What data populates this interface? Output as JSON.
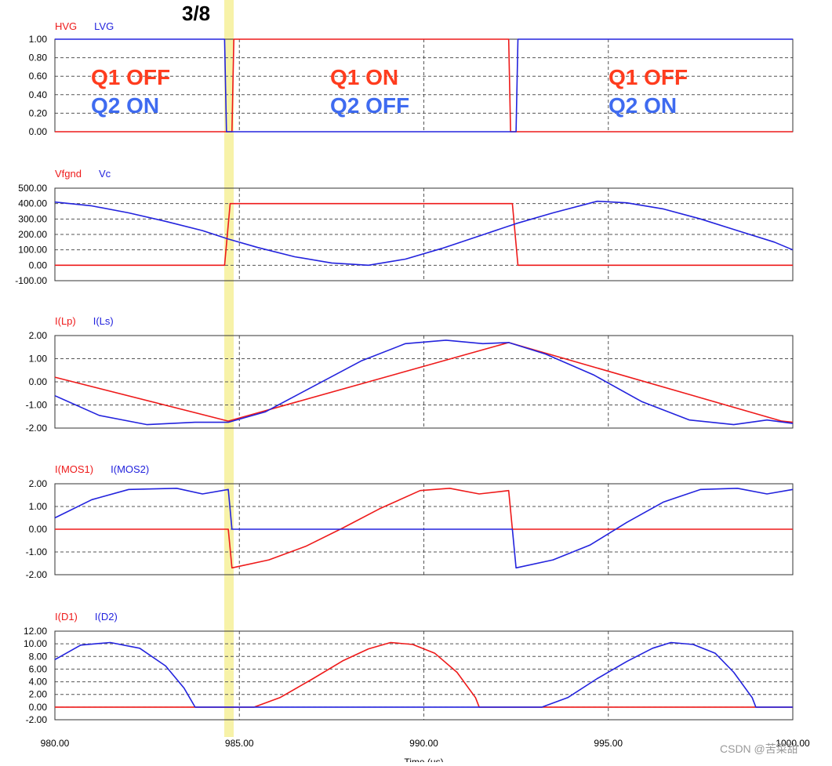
{
  "colors": {
    "red": "#ee1a1a",
    "blue": "#2323dd",
    "annRed": "#ff3c1e",
    "annBlue": "#3f6bf0",
    "highlight": "#f7f2a8"
  },
  "marker_label": "3/8",
  "watermark": "CSDN @苦菜甜",
  "x_axis": {
    "label": "Time (us)",
    "ticks": [
      "980.00",
      "985.00",
      "990.00",
      "995.00",
      "1000.00"
    ]
  },
  "annotations": [
    {
      "line1": "Q1 OFF",
      "line2": "Q2 ON"
    },
    {
      "line1": "Q1 ON",
      "line2": "Q2 OFF"
    },
    {
      "line1": "Q1 OFF",
      "line2": "Q2 ON"
    }
  ],
  "chart_data": [
    {
      "type": "line",
      "legend": [
        "HVG",
        "LVG"
      ],
      "ylim": [
        0,
        1
      ],
      "yticks": [
        "1.00",
        "0.80",
        "0.60",
        "0.40",
        "0.20",
        "0.00"
      ],
      "x": [
        980,
        984.6,
        984.65,
        984.8,
        984.85,
        992.3,
        992.35,
        992.5,
        992.55,
        1000
      ],
      "series": [
        {
          "name": "HVG",
          "values": [
            0,
            0,
            0,
            0,
            1,
            1,
            0,
            0,
            0,
            0
          ]
        },
        {
          "name": "LVG",
          "values": [
            1,
            1,
            0,
            0,
            0,
            0,
            0,
            0,
            1,
            1
          ]
        }
      ]
    },
    {
      "type": "line",
      "legend": [
        "Vfgnd",
        "Vc"
      ],
      "ylim": [
        -100,
        500
      ],
      "yticks": [
        "500.00",
        "400.00",
        "300.00",
        "200.00",
        "100.00",
        "0.00",
        "-100.00"
      ],
      "series": [
        {
          "name": "Vfgnd",
          "x": [
            980,
            984.6,
            984.75,
            992.4,
            992.55,
            1000
          ],
          "values": [
            0,
            0,
            400,
            400,
            0,
            0
          ]
        },
        {
          "name": "Vc",
          "x": [
            980,
            981,
            982,
            983,
            984,
            984.7,
            985.5,
            986.5,
            987.5,
            988.5,
            989.5,
            990.5,
            991.5,
            992.5,
            993.5,
            994.7,
            995.5,
            996.5,
            997.5,
            998.5,
            999.5,
            1000
          ],
          "values": [
            410,
            385,
            340,
            285,
            225,
            170,
            115,
            55,
            15,
            0,
            40,
            110,
            190,
            270,
            340,
            415,
            405,
            365,
            300,
            225,
            150,
            100
          ]
        }
      ]
    },
    {
      "type": "line",
      "legend": [
        "I(Lp)",
        "I(Ls)"
      ],
      "ylim": [
        -2,
        2
      ],
      "yticks": [
        "2.00",
        "1.00",
        "0.00",
        "-1.00",
        "-2.00"
      ],
      "series": [
        {
          "name": "I(Lp)",
          "x": [
            980,
            984.7,
            992.3,
            999.7,
            1000
          ],
          "values": [
            0.2,
            -1.7,
            1.7,
            -1.7,
            -1.75
          ]
        },
        {
          "name": "I(Ls)",
          "x": [
            980,
            981.2,
            982.5,
            983.8,
            984.7,
            985.7,
            987,
            988.3,
            989.5,
            990.6,
            991.6,
            992.3,
            993.3,
            994.6,
            995.9,
            997.2,
            998.4,
            999.3,
            1000
          ],
          "values": [
            -0.6,
            -1.45,
            -1.85,
            -1.75,
            -1.75,
            -1.3,
            -0.2,
            0.9,
            1.65,
            1.8,
            1.65,
            1.7,
            1.2,
            0.3,
            -0.85,
            -1.65,
            -1.85,
            -1.65,
            -1.8
          ]
        }
      ]
    },
    {
      "type": "line",
      "legend": [
        "I(MOS1)",
        "I(MOS2)"
      ],
      "ylim": [
        -2,
        2
      ],
      "yticks": [
        "2.00",
        "1.00",
        "0.00",
        "-1.00",
        "-2.00"
      ],
      "series": [
        {
          "name": "I(MOS1)",
          "x": [
            980,
            984.7,
            984.8,
            985.8,
            986.8,
            987.8,
            988.8,
            989.9,
            990.7,
            991.5,
            992.3,
            992.4,
            1000
          ],
          "values": [
            0,
            0,
            -1.7,
            -1.35,
            -0.75,
            0.05,
            0.9,
            1.7,
            1.8,
            1.55,
            1.7,
            0,
            0
          ]
        },
        {
          "name": "I(MOS2)",
          "x": [
            980,
            981,
            982,
            983.3,
            984,
            984.7,
            984.8,
            992.4,
            992.5,
            993.5,
            994.5,
            995.5,
            996.5,
            997.5,
            998.5,
            999.3,
            1000
          ],
          "values": [
            0.5,
            1.3,
            1.75,
            1.8,
            1.55,
            1.75,
            0,
            0,
            -1.7,
            -1.35,
            -0.7,
            0.3,
            1.2,
            1.75,
            1.8,
            1.55,
            1.75
          ]
        }
      ]
    },
    {
      "type": "line",
      "legend": [
        "I(D1)",
        "I(D2)"
      ],
      "ylim": [
        -2,
        12
      ],
      "yticks": [
        "12.00",
        "10.00",
        "8.00",
        "6.00",
        "4.00",
        "2.00",
        "0.00",
        "-2.00"
      ],
      "series": [
        {
          "name": "I(D1)",
          "x": [
            980,
            985.4,
            986.1,
            987,
            987.8,
            988.5,
            989.1,
            989.7,
            990.3,
            990.9,
            991.4,
            991.5,
            1000
          ],
          "values": [
            0,
            0,
            1.5,
            4.5,
            7.3,
            9.2,
            10.2,
            9.9,
            8.5,
            5.5,
            1.5,
            0,
            0
          ]
        },
        {
          "name": "I(D2)",
          "x": [
            980,
            980.7,
            981.5,
            982.3,
            983,
            983.5,
            983.8,
            993.2,
            993.9,
            994.7,
            995.5,
            996.2,
            996.7,
            997.3,
            997.9,
            998.4,
            998.9,
            999.0,
            1000
          ],
          "values": [
            7.5,
            9.8,
            10.2,
            9.3,
            6.5,
            3.0,
            0,
            0,
            1.5,
            4.5,
            7.2,
            9.3,
            10.2,
            9.9,
            8.5,
            5.5,
            1.5,
            0,
            0
          ]
        }
      ]
    }
  ]
}
